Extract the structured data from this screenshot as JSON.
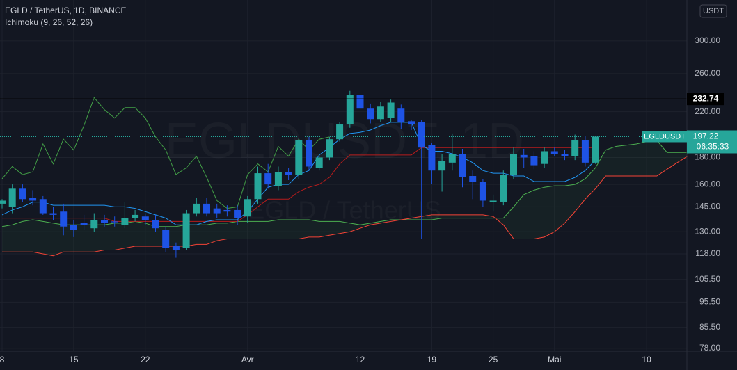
{
  "chart_data": {
    "type": "candlestick",
    "title": "EGLD / TetherUS, 1D, BINANCE",
    "indicator_label": "Ichimoku (9, 26, 52, 26)",
    "currency": "USDT",
    "symbol": "EGLDUSDT",
    "countdown": "06:35:33",
    "watermark": "EGLDUSDT, 1D",
    "watermark_sub": "EGLD / TetherUS",
    "log_scale": true,
    "grid": true,
    "up_color": "#26a69a",
    "down_color": "#1e53e5",
    "hline": 232.74,
    "categories": [
      "8",
      null,
      null,
      null,
      null,
      null,
      null,
      "15",
      null,
      null,
      null,
      null,
      null,
      null,
      "22",
      null,
      null,
      null,
      null,
      null,
      null,
      null,
      null,
      null,
      "Avr",
      null,
      null,
      null,
      null,
      null,
      null,
      null,
      null,
      null,
      null,
      "12",
      null,
      null,
      null,
      null,
      null,
      null,
      "19",
      null,
      null,
      null,
      null,
      null,
      "25",
      null,
      null,
      null,
      null,
      null,
      "Mai",
      null,
      null,
      null,
      null,
      null,
      null,
      null,
      null,
      "10",
      null,
      null,
      null,
      null
    ],
    "open": [
      147,
      145,
      157,
      151,
      150,
      141,
      142,
      134,
      135,
      132,
      137,
      136,
      134,
      138,
      139,
      137,
      131,
      122,
      121,
      141,
      147,
      144,
      143,
      143,
      139,
      150,
      168,
      159,
      169,
      167,
      194,
      172,
      180,
      195,
      208,
      237,
      223,
      213,
      214,
      223,
      211,
      210,
      190,
      170,
      176,
      183,
      166,
      162,
      148,
      148,
      167,
      182,
      181,
      175,
      185,
      183,
      181,
      194,
      176,
      null,
      null,
      null,
      null,
      null,
      null,
      null,
      null,
      null
    ],
    "high": [
      150,
      160,
      160,
      156,
      152,
      145,
      147,
      137,
      140,
      141,
      140,
      139,
      148,
      143,
      141,
      140,
      133,
      124,
      143,
      151,
      151,
      147,
      146,
      146,
      152,
      173,
      175,
      173,
      172,
      196,
      197,
      183,
      197,
      210,
      241,
      245,
      228,
      230,
      232,
      227,
      212,
      212,
      192,
      183,
      200,
      187,
      170,
      164,
      153,
      170,
      188,
      187,
      185,
      188,
      188,
      186,
      199,
      198,
      198,
      null,
      null,
      null,
      null,
      null,
      null,
      null,
      null,
      null
    ],
    "low": [
      144,
      141,
      148,
      146,
      140,
      137,
      128,
      127,
      131,
      130,
      133,
      133,
      132,
      136,
      134,
      130,
      119,
      116,
      120,
      139,
      139,
      138,
      139,
      134,
      135,
      147,
      157,
      156,
      163,
      164,
      170,
      170,
      178,
      193,
      205,
      218,
      209,
      210,
      210,
      204,
      203,
      126,
      160,
      155,
      170,
      158,
      150,
      145,
      142,
      146,
      164,
      172,
      171,
      172,
      181,
      178,
      178,
      173,
      175,
      null,
      null,
      null,
      null,
      null,
      null,
      null,
      null,
      null
    ],
    "close": [
      149,
      157,
      150,
      149,
      141,
      140,
      133,
      131,
      134,
      137,
      135,
      135.5,
      138,
      140,
      137,
      132,
      121,
      120,
      141,
      147,
      141,
      141,
      142,
      138,
      150,
      168,
      160,
      169,
      167,
      194,
      173,
      180,
      195,
      208,
      237,
      223,
      213,
      225,
      229,
      210,
      208,
      188,
      170,
      177,
      183,
      165,
      162,
      149,
      149,
      167,
      183,
      180,
      174,
      185,
      183,
      181,
      194,
      176,
      197.22,
      null,
      null,
      null,
      null,
      null,
      null,
      null,
      null,
      null
    ],
    "ichimoku": {
      "conversion": {
        "color": "#2196f3",
        "values": [
          140,
          143,
          145,
          148,
          148,
          146,
          146,
          146,
          146,
          146,
          146,
          145,
          145,
          144,
          142,
          140,
          138,
          134,
          134,
          134,
          136,
          137,
          137,
          137,
          142,
          150,
          158,
          160,
          160,
          167,
          170,
          182,
          188,
          195,
          200,
          201,
          203,
          207,
          210,
          210,
          210,
          190,
          185,
          185,
          183,
          180,
          176,
          170,
          168,
          168,
          166,
          166,
          162,
          162,
          162,
          162,
          165,
          170,
          178,
          null,
          null,
          null,
          null,
          null,
          null,
          null,
          null,
          null
        ]
      },
      "base": {
        "color": "#b71c1c",
        "values": [
          138,
          138,
          138,
          138,
          138,
          138,
          138,
          138,
          138,
          138,
          138,
          136,
          136,
          136,
          136,
          136,
          136,
          136,
          136,
          136,
          136,
          136,
          136,
          136,
          140,
          145,
          150,
          150,
          150,
          155,
          158,
          160,
          165,
          175,
          182,
          182,
          182,
          182,
          182,
          182,
          182,
          188,
          188,
          188,
          188,
          188,
          188,
          188,
          188,
          188,
          188,
          188,
          188,
          188,
          188,
          188,
          188,
          188,
          188,
          null,
          null,
          null,
          null,
          null,
          null,
          null,
          null,
          null
        ]
      },
      "lagging": {
        "color": "#43a047",
        "values": [
          164,
          173,
          167,
          169,
          191,
          175,
          195,
          186,
          207,
          234,
          222,
          214,
          224,
          224,
          214,
          197,
          186,
          167,
          172,
          181,
          165,
          149,
          144,
          145,
          167,
          175,
          169,
          189,
          181,
          195,
          186,
          195,
          197,
          null,
          null,
          null,
          null,
          null,
          null,
          null,
          null,
          null,
          null,
          null,
          null,
          null,
          null,
          null,
          null,
          null,
          null,
          null,
          null,
          null,
          null,
          null,
          null,
          null,
          null,
          null,
          null,
          null,
          null,
          null,
          null,
          null,
          null,
          null
        ]
      },
      "span_a": {
        "color": "#4caf50",
        "values": [
          133,
          134,
          136,
          137,
          136,
          135,
          134,
          134,
          134,
          134,
          134,
          135,
          135,
          136,
          135,
          133,
          133,
          133,
          134,
          134,
          134,
          135,
          135,
          136,
          136,
          136,
          136,
          137,
          137,
          137,
          137,
          136,
          136,
          136,
          135,
          134,
          135,
          136,
          137,
          137,
          137,
          137,
          137,
          138,
          138,
          138,
          138,
          138,
          138,
          138,
          145,
          153,
          156,
          158,
          159,
          159,
          160,
          164,
          172,
          186,
          189,
          190,
          191,
          193,
          194,
          184,
          184,
          184
        ]
      },
      "span_b": {
        "color": "#f44336",
        "values": [
          119,
          119,
          119,
          119,
          118,
          117,
          119,
          119,
          119,
          119,
          120,
          120,
          121,
          122,
          122,
          122,
          122,
          122,
          122,
          123,
          123,
          125,
          126,
          126,
          126,
          126,
          126,
          126,
          126,
          126,
          127,
          127,
          128,
          129,
          130,
          132,
          134,
          135,
          136,
          137,
          138,
          139,
          140,
          140,
          140,
          140,
          140,
          140,
          139,
          134,
          126,
          126,
          126,
          127,
          130,
          135,
          142,
          150,
          157,
          166,
          166,
          166,
          166,
          166,
          166,
          171,
          176,
          181
        ]
      }
    },
    "ylim": [
      77,
      359
    ],
    "yticks": [
      {
        "value": 300,
        "label": "300.00"
      },
      {
        "value": 260,
        "label": "260.00"
      },
      {
        "value": 220,
        "label": "220.00"
      },
      {
        "value": 180,
        "label": "180.00"
      },
      {
        "value": 160,
        "label": "160.00"
      },
      {
        "value": 145,
        "label": "145.00"
      },
      {
        "value": 130,
        "label": "130.00"
      },
      {
        "value": 118,
        "label": "118.00"
      },
      {
        "value": 105.5,
        "label": "105.50"
      },
      {
        "value": 95.5,
        "label": "95.50"
      },
      {
        "value": 85.5,
        "label": "85.50"
      },
      {
        "value": 78,
        "label": "78.00"
      }
    ]
  }
}
